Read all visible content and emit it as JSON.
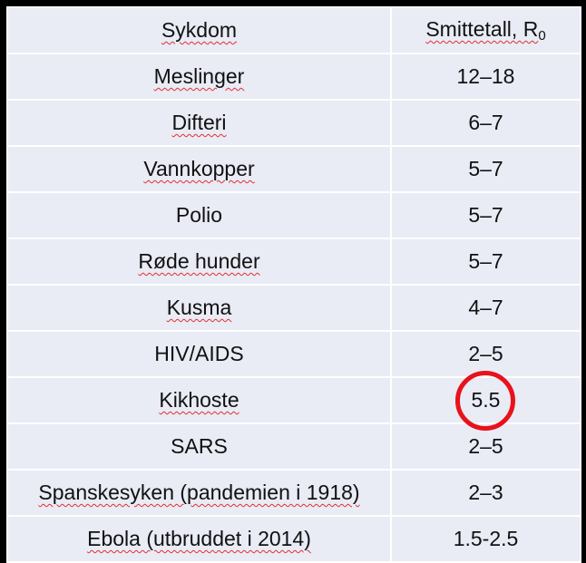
{
  "table": {
    "header": {
      "disease": "Sykdom",
      "r0_label": "Smittetall, R",
      "r0_subscript": "0"
    },
    "rows": [
      {
        "disease": "Meslinger",
        "r0": "12–18"
      },
      {
        "disease": "Difteri",
        "r0": "6–7"
      },
      {
        "disease": "Vannkopper",
        "r0": "5–7"
      },
      {
        "disease": "Polio",
        "r0": "5–7"
      },
      {
        "disease": "Røde hunder",
        "r0": "5–7"
      },
      {
        "disease": "Kusma",
        "r0": "4–7"
      },
      {
        "disease": "HIV/AIDS",
        "r0": "2–5"
      },
      {
        "disease": "Kikhoste",
        "r0": "5.5"
      },
      {
        "disease": "SARS",
        "r0": "2–5"
      },
      {
        "disease": "Spanskesyken (pandemien i 1918)",
        "r0": "2–3"
      },
      {
        "disease": "Ebola (utbruddet i 2014)",
        "r0": "1.5-2.5"
      }
    ]
  },
  "colors": {
    "background": "#000000",
    "cell_fill": "#e9ebf5",
    "grid_line": "#ffffff",
    "highlight_circle": "#e8121b",
    "spellcheck_underline": "#e03030"
  }
}
